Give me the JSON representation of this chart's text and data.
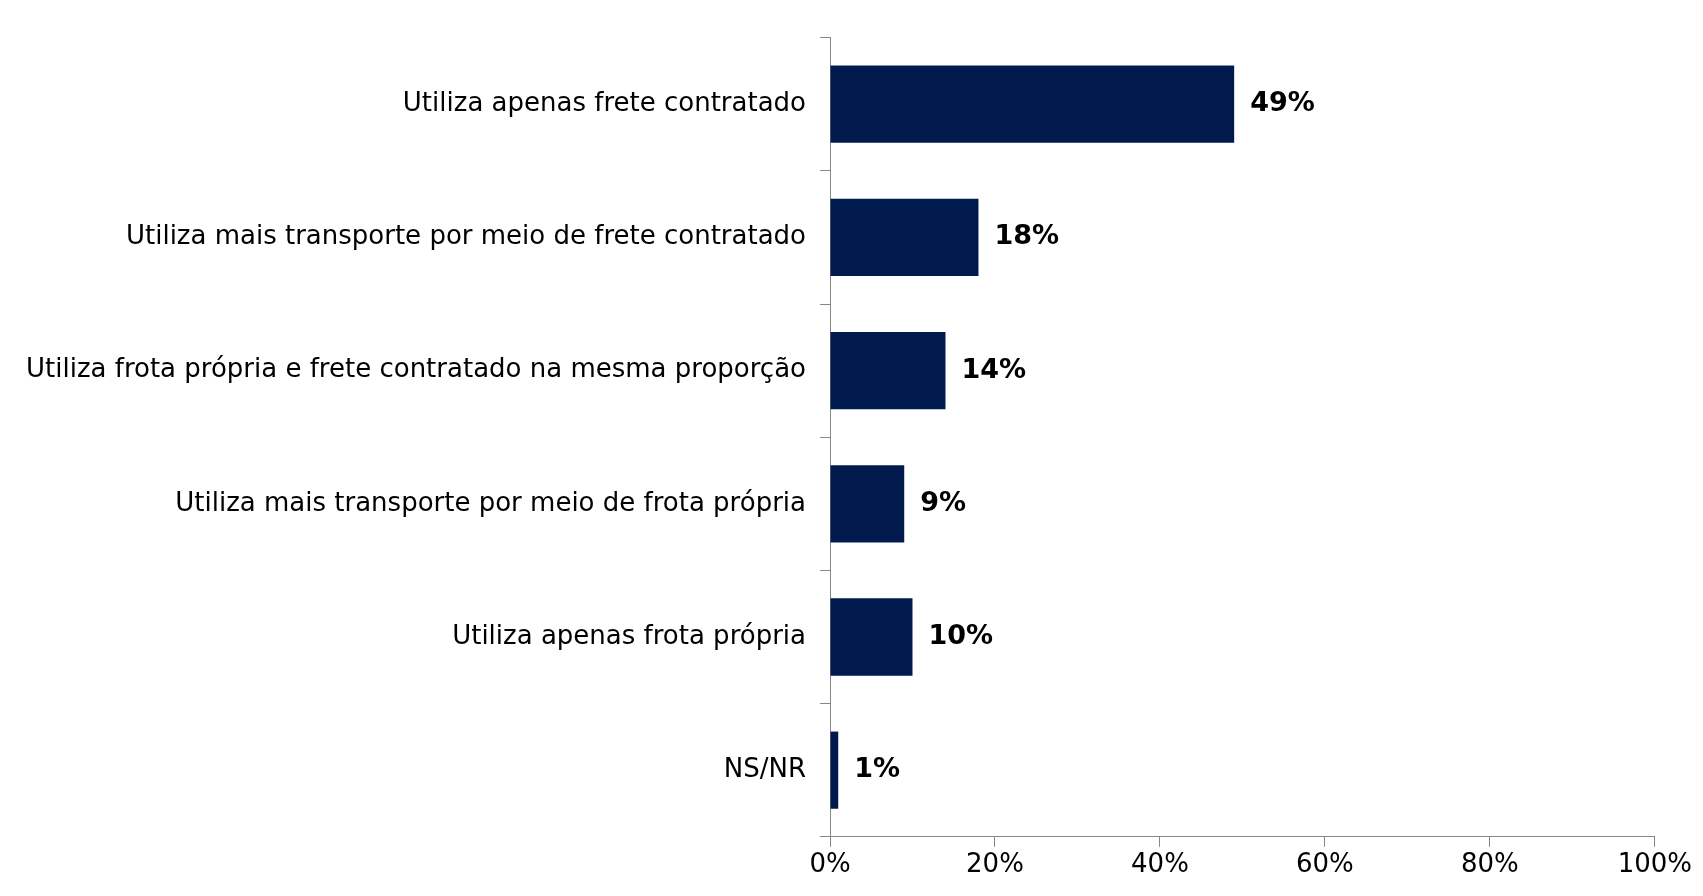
{
  "chart_data": {
    "type": "bar",
    "orientation": "horizontal",
    "categories": [
      "Utiliza apenas frete contratado",
      "Utiliza mais transporte por meio de frete contratado",
      "Utiliza frota própria e frete contratado na mesma proporção",
      "Utiliza mais transporte por meio de frota própria",
      "Utiliza apenas frota própria",
      "NS/NR"
    ],
    "values": [
      49,
      18,
      14,
      9,
      10,
      1
    ],
    "value_labels": [
      "49%",
      "18%",
      "14%",
      "9%",
      "10%",
      "1%"
    ],
    "color": "#001a4e",
    "xlim": [
      0,
      100
    ],
    "xticks": [
      {
        "value": 0,
        "label": "0%"
      },
      {
        "value": 20,
        "label": "20%"
      },
      {
        "value": 40,
        "label": "40%"
      },
      {
        "value": 60,
        "label": "60%"
      },
      {
        "value": 80,
        "label": "80%"
      },
      {
        "value": 100,
        "label": "100%"
      }
    ],
    "grid": false,
    "legend": false
  }
}
